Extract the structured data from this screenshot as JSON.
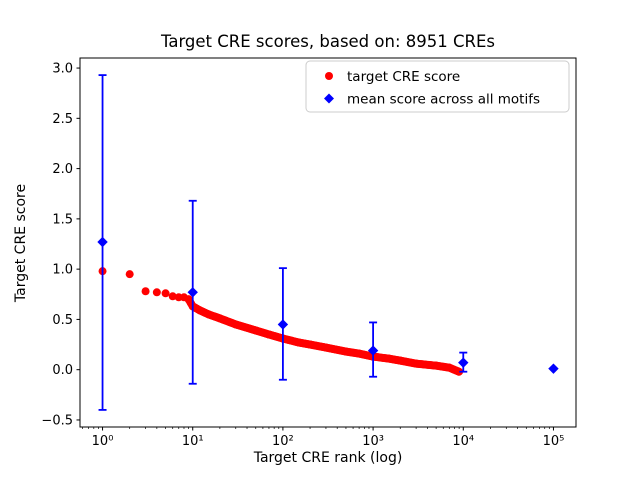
{
  "chart_data": {
    "type": "scatter",
    "title": "Target CRE scores, based on: 8951 CREs",
    "xlabel": "Target CRE rank (log)",
    "ylabel": "Target CRE score",
    "xscale": "log",
    "xlim_log10": [
      -0.25,
      5.25
    ],
    "ylim": [
      -0.57,
      3.1
    ],
    "xticks": {
      "values": [
        1,
        10,
        100,
        1000,
        10000,
        100000
      ],
      "labels": [
        "10⁰",
        "10¹",
        "10²",
        "10³",
        "10⁴",
        "10⁵"
      ]
    },
    "yticks": {
      "values": [
        -0.5,
        0.0,
        0.5,
        1.0,
        1.5,
        2.0,
        2.5,
        3.0
      ],
      "labels": [
        "−0.5",
        "0.0",
        "0.5",
        "1.0",
        "1.5",
        "2.0",
        "2.5",
        "3.0"
      ]
    },
    "series": [
      {
        "name": "target CRE score",
        "marker": "circle",
        "color": "#ff0000",
        "points": [
          [
            1,
            0.98
          ],
          [
            2,
            0.95
          ],
          [
            3,
            0.78
          ],
          [
            4,
            0.77
          ],
          [
            5,
            0.76
          ],
          [
            6,
            0.73
          ],
          [
            7,
            0.72
          ],
          [
            8,
            0.72
          ],
          [
            9,
            0.7
          ],
          [
            10,
            0.63
          ],
          [
            12,
            0.59
          ],
          [
            15,
            0.55
          ],
          [
            20,
            0.51
          ],
          [
            30,
            0.45
          ],
          [
            50,
            0.39
          ],
          [
            70,
            0.35
          ],
          [
            100,
            0.31
          ],
          [
            150,
            0.27
          ],
          [
            200,
            0.25
          ],
          [
            300,
            0.22
          ],
          [
            500,
            0.18
          ],
          [
            700,
            0.16
          ],
          [
            1000,
            0.13
          ],
          [
            1500,
            0.11
          ],
          [
            2000,
            0.09
          ],
          [
            3000,
            0.06
          ],
          [
            5000,
            0.04
          ],
          [
            7000,
            0.02
          ],
          [
            8951,
            -0.02
          ]
        ],
        "dense_from_rank": 9,
        "dense_to_rank": 8951,
        "dense_count": 260
      },
      {
        "name": "mean score across all motifs",
        "marker": "diamond",
        "color": "#0000ff",
        "x": [
          1,
          10,
          100,
          1000,
          10000,
          100000
        ],
        "mean": [
          1.27,
          0.77,
          0.45,
          0.19,
          0.07,
          0.01
        ],
        "err_low": [
          1.67,
          0.91,
          0.55,
          0.26,
          0.09,
          0.0
        ],
        "err_high": [
          1.66,
          0.91,
          0.56,
          0.28,
          0.1,
          0.0
        ]
      }
    ],
    "legend": {
      "position": "upper right",
      "entries": [
        "target CRE score",
        "mean score across all motifs"
      ]
    },
    "grid": false
  }
}
